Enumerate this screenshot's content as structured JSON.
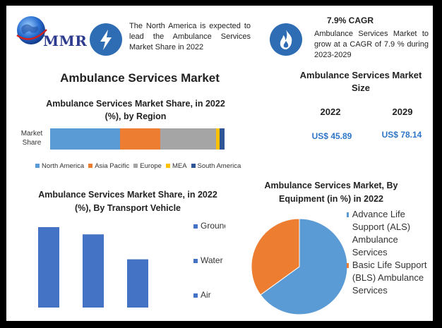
{
  "logo": {
    "text": "MMR"
  },
  "info_left": {
    "icon": "lightning-bolt-icon",
    "text": "The North America is expected to lead the Ambulance Services Market Share in 2022"
  },
  "info_right": {
    "icon": "flame-icon",
    "title": "7.9% CAGR",
    "text": "Ambulance Services Market to grow at a CAGR of 7.9 % during 2023-2029"
  },
  "main_title": "Ambulance Services Market",
  "market_size": {
    "title": "Ambulance Services Market Size",
    "year1": "2022",
    "value1": "US$ 45.89",
    "year2": "2029",
    "value2": "US$ 78.14"
  },
  "colors": {
    "north_america": "#5b9bd5",
    "asia_pacific": "#ed7d31",
    "europe": "#a5a5a5",
    "mea": "#ffc000",
    "south_america": "#2f5597",
    "bar": "#4472c4",
    "als": "#5b9bd5",
    "bls": "#ed7d31",
    "icon_bg": "#2e6db3"
  },
  "chart_data": [
    {
      "type": "bar",
      "orientation": "horizontal-stacked",
      "title": "Ambulance Services Market Share, in 2022 (%), by Region",
      "categories": [
        "Market Share"
      ],
      "series": [
        {
          "name": "North America",
          "values": [
            40
          ]
        },
        {
          "name": "Asia Pacific",
          "values": [
            23
          ]
        },
        {
          "name": "Europe",
          "values": [
            32
          ]
        },
        {
          "name": "MEA",
          "values": [
            2
          ]
        },
        {
          "name": "South America",
          "values": [
            3
          ]
        }
      ],
      "legend": "bottom"
    },
    {
      "type": "bar",
      "title": "Ambulance Services Market Share, in 2022 (%), By Transport Vehicle",
      "categories": [
        "Ground",
        "Water",
        "Air"
      ],
      "values": [
        100,
        91,
        60
      ],
      "legend": "right"
    },
    {
      "type": "pie",
      "title": "Ambulance Services Market, By Equipment (in %) in 2022",
      "categories": [
        "Advance Life Support (ALS) Ambulance Services",
        "Basic Life Support (BLS) Ambulance Services"
      ],
      "values": [
        65,
        35
      ],
      "legend": "right"
    }
  ]
}
